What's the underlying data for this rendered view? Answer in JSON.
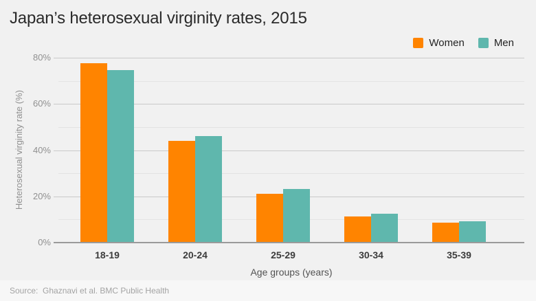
{
  "page": {
    "title": "Japan’s heterosexual virginity rates, 2015",
    "source": "Source:  Ghaznavi et al. BMC Public Health"
  },
  "legend": {
    "items": [
      {
        "label": "Women",
        "color": "#ff8400"
      },
      {
        "label": "Men",
        "color": "#5fb7ad"
      }
    ]
  },
  "chart_data": {
    "type": "bar",
    "title": "Japan’s heterosexual virginity rates, 2015",
    "categories": [
      "18-19",
      "20-24",
      "25-29",
      "30-34",
      "35-39"
    ],
    "series": [
      {
        "name": "Women",
        "color": "#ff8400",
        "values": [
          77.7,
          44.0,
          21.2,
          11.4,
          8.6
        ]
      },
      {
        "name": "Men",
        "color": "#5fb7ad",
        "values": [
          74.7,
          46.2,
          23.2,
          12.6,
          9.1
        ]
      }
    ],
    "xlabel": "Age groups (years)",
    "ylabel": "Heterosexual virginity rate (%)",
    "ylim": [
      0,
      80
    ],
    "yticks_major": [
      {
        "value": 0,
        "label": "0%"
      },
      {
        "value": 20,
        "label": "20%"
      },
      {
        "value": 40,
        "label": "40%"
      },
      {
        "value": 60,
        "label": "60%"
      },
      {
        "value": 80,
        "label": "80%"
      }
    ],
    "yticks_minor": [
      10,
      30,
      50,
      70
    ],
    "grid": true,
    "legend_position": "top-right"
  }
}
